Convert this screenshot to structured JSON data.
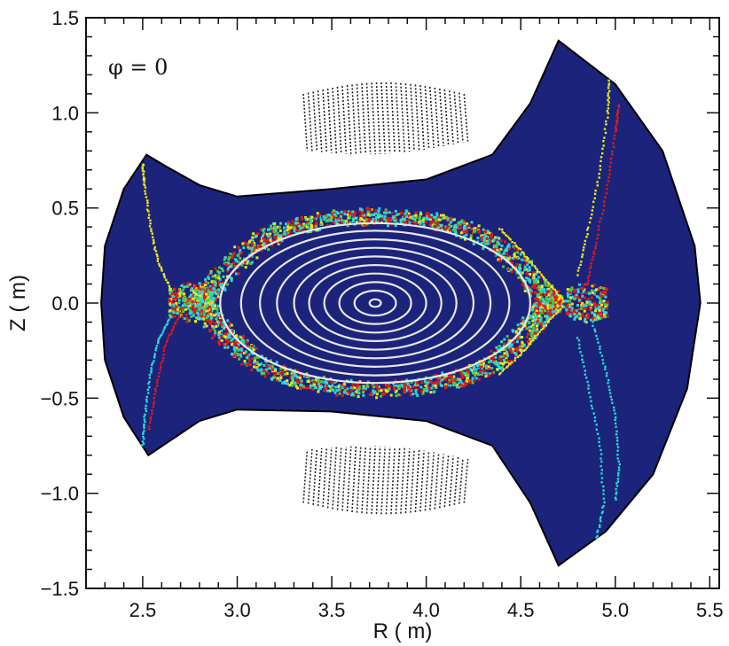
{
  "chart_data": {
    "type": "scatter",
    "xlabel": "R ( m)",
    "ylabel": "Z ( m)",
    "xlim": [
      2.2,
      5.55
    ],
    "ylim": [
      -1.5,
      1.5
    ],
    "x_ticks": [
      2.5,
      3.0,
      3.5,
      4.0,
      4.5,
      5.0,
      5.5
    ],
    "x_tick_labels": [
      "2.5",
      "3.0",
      "3.5",
      "4.0",
      "4.5",
      "5.0",
      "5.5"
    ],
    "y_ticks": [
      -1.5,
      -1.0,
      -0.5,
      0.0,
      0.5,
      1.0,
      1.5
    ],
    "y_tick_labels": [
      "-1.5",
      "-1.0",
      "-0.5",
      "0.0",
      "0.5",
      "1.0",
      "1.5"
    ],
    "annotation": "φ = 0",
    "grid": false,
    "legend": "none",
    "colors": {
      "vessel_fill": "#1c237b",
      "flux_surface": "#e6e6e6",
      "chaos_red": "#e11a1a",
      "chaos_yellow": "#e8e81a",
      "chaos_cyan": "#27d8d8",
      "chaos_green": "#52c43a",
      "coil": "#222222"
    },
    "vessel_boundary": [
      [
        2.52,
        0.78
      ],
      [
        2.62,
        0.72
      ],
      [
        2.8,
        0.62
      ],
      [
        3.0,
        0.56
      ],
      [
        3.5,
        0.6
      ],
      [
        4.0,
        0.65
      ],
      [
        4.35,
        0.78
      ],
      [
        4.55,
        1.05
      ],
      [
        4.7,
        1.38
      ],
      [
        5.0,
        1.15
      ],
      [
        5.25,
        0.8
      ],
      [
        5.42,
        0.3
      ],
      [
        5.45,
        0.0
      ],
      [
        5.38,
        -0.45
      ],
      [
        5.2,
        -0.9
      ],
      [
        4.95,
        -1.2
      ],
      [
        4.7,
        -1.38
      ],
      [
        4.55,
        -1.05
      ],
      [
        4.35,
        -0.75
      ],
      [
        4.0,
        -0.62
      ],
      [
        3.5,
        -0.57
      ],
      [
        3.0,
        -0.56
      ],
      [
        2.8,
        -0.62
      ],
      [
        2.53,
        -0.8
      ],
      [
        2.4,
        -0.6
      ],
      [
        2.3,
        -0.3
      ],
      [
        2.28,
        0.0
      ],
      [
        2.3,
        0.3
      ],
      [
        2.4,
        0.6
      ],
      [
        2.52,
        0.78
      ]
    ],
    "magnetic_axis": [
      3.73,
      0.0
    ],
    "flux_surfaces": [
      {
        "a": 0.03,
        "b": 0.02
      },
      {
        "a": 0.11,
        "b": 0.065
      },
      {
        "a": 0.19,
        "b": 0.11
      },
      {
        "a": 0.27,
        "b": 0.155
      },
      {
        "a": 0.35,
        "b": 0.2
      },
      {
        "a": 0.43,
        "b": 0.245
      },
      {
        "a": 0.52,
        "b": 0.29
      },
      {
        "a": 0.61,
        "b": 0.335
      },
      {
        "a": 0.71,
        "b": 0.38
      },
      {
        "a": 0.82,
        "b": 0.42
      }
    ],
    "chaotic_layer": {
      "center": [
        3.73,
        0.0
      ],
      "inner": [
        0.85,
        0.42
      ],
      "outer": [
        1.0,
        0.49
      ]
    },
    "x_points": [
      [
        2.75,
        0.0
      ],
      [
        4.85,
        0.0
      ]
    ],
    "field_line_series": [
      {
        "color": "#e8e81a",
        "points": [
          [
            2.65,
            0.07
          ],
          [
            2.58,
            0.22
          ],
          [
            2.54,
            0.4
          ],
          [
            2.51,
            0.62
          ],
          [
            2.5,
            0.74
          ]
        ]
      },
      {
        "color": "#27d8d8",
        "points": [
          [
            2.65,
            -0.07
          ],
          [
            2.58,
            -0.2
          ],
          [
            2.54,
            -0.38
          ],
          [
            2.51,
            -0.6
          ],
          [
            2.5,
            -0.76
          ]
        ]
      },
      {
        "color": "#e11a1a",
        "points": [
          [
            2.7,
            -0.05
          ],
          [
            2.62,
            -0.22
          ],
          [
            2.57,
            -0.45
          ],
          [
            2.53,
            -0.68
          ]
        ]
      },
      {
        "color": "#e11a1a",
        "points": [
          [
            4.85,
            0.1
          ],
          [
            4.9,
            0.32
          ],
          [
            4.96,
            0.62
          ],
          [
            5.0,
            0.9
          ],
          [
            5.02,
            1.05
          ]
        ]
      },
      {
        "color": "#e8e81a",
        "points": [
          [
            4.8,
            0.15
          ],
          [
            4.86,
            0.4
          ],
          [
            4.92,
            0.7
          ],
          [
            4.96,
            1.0
          ],
          [
            4.97,
            1.18
          ]
        ]
      },
      {
        "color": "#27d8d8",
        "points": [
          [
            4.88,
            -0.1
          ],
          [
            4.95,
            -0.35
          ],
          [
            5.0,
            -0.6
          ],
          [
            5.02,
            -0.85
          ],
          [
            5.0,
            -1.05
          ]
        ]
      },
      {
        "color": "#27d8d8",
        "points": [
          [
            4.8,
            -0.18
          ],
          [
            4.86,
            -0.45
          ],
          [
            4.92,
            -0.75
          ],
          [
            4.94,
            -1.05
          ],
          [
            4.9,
            -1.25
          ]
        ]
      },
      {
        "color": "#e8e81a",
        "points": [
          [
            4.72,
            0.02
          ],
          [
            4.6,
            0.16
          ],
          [
            4.5,
            0.28
          ],
          [
            4.38,
            0.4
          ]
        ]
      },
      {
        "color": "#e8e81a",
        "points": [
          [
            4.72,
            -0.02
          ],
          [
            4.6,
            -0.15
          ],
          [
            4.5,
            -0.27
          ],
          [
            4.38,
            -0.38
          ]
        ]
      }
    ],
    "coils": [
      {
        "r_min": 3.35,
        "r_max": 4.2,
        "z_outer": 1.1,
        "z_inner": 0.8
      },
      {
        "r_min": 3.35,
        "r_max": 4.2,
        "z_outer": -1.05,
        "z_inner": -0.77
      }
    ]
  }
}
